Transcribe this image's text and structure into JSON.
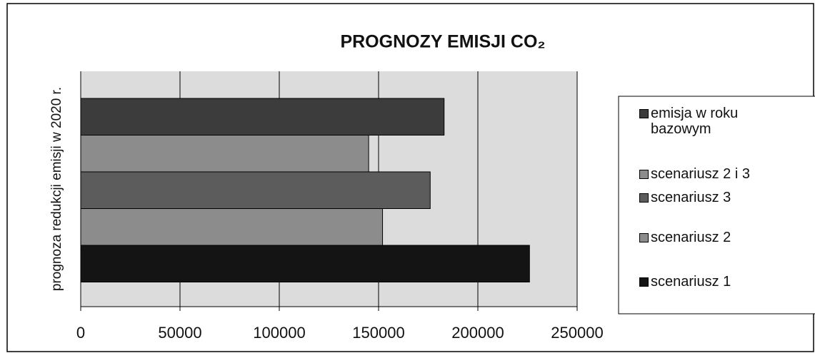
{
  "chart_data": {
    "type": "hbar",
    "title": "PROGNOZY EMISJI CO₂",
    "y_label": "prognoza redukcji emisji w 2020 r.",
    "series": [
      {
        "name": "emisja w roku bazowym",
        "color": "#3c3c3c",
        "values": [
          183000
        ]
      },
      {
        "name": "scenariusz 2 i 3",
        "color": "#8c8c8c",
        "values": [
          145000
        ]
      },
      {
        "name": "scenariusz 3",
        "color": "#5c5c5c",
        "values": [
          176000
        ]
      },
      {
        "name": "scenariusz 2",
        "color": "#8c8c8c",
        "values": [
          152000
        ]
      },
      {
        "name": "scenariusz 1",
        "color": "#141414",
        "values": [
          226000
        ]
      }
    ],
    "xlim": [
      0,
      250000
    ],
    "xticks": [
      0,
      50000,
      100000,
      150000,
      200000,
      250000
    ],
    "grid": true
  }
}
